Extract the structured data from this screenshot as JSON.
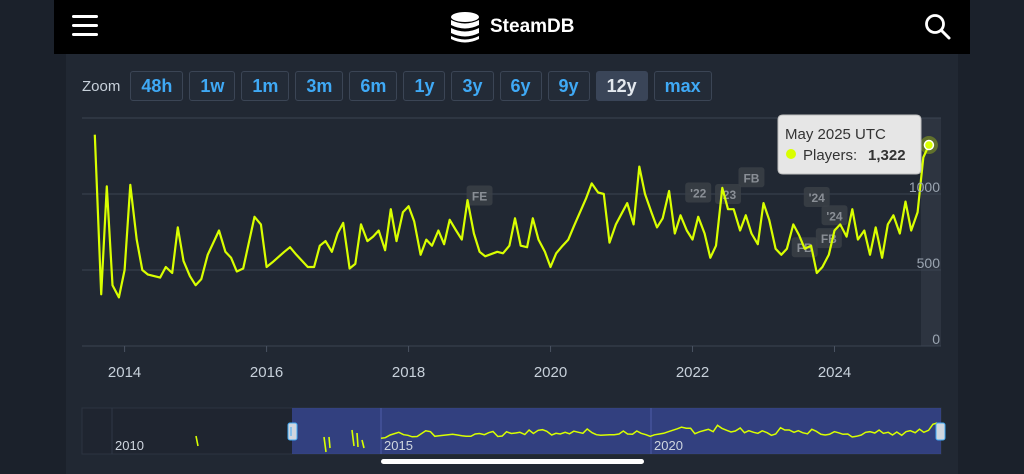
{
  "header": {
    "app_title": "SteamDB",
    "menu_icon": "hamburger-icon",
    "search_icon": "search-icon"
  },
  "zoom": {
    "label": "Zoom",
    "options": [
      "48h",
      "1w",
      "1m",
      "3m",
      "6m",
      "1y",
      "3y",
      "6y",
      "9y",
      "12y",
      "max"
    ],
    "selected": "12y"
  },
  "tooltip": {
    "date": "May 2025 UTC",
    "series_label": "Players:",
    "value_text": "1,322"
  },
  "navigator": {
    "labels": [
      "2010",
      "2015",
      "2020"
    ]
  },
  "colors": {
    "line": "#d9ff00",
    "accent": "#3fa9f5",
    "background": "#212833"
  },
  "chart_data": {
    "type": "line",
    "ylim": [
      0,
      1500
    ],
    "xlim": [
      2013.4,
      2025.5
    ],
    "yticks": [
      0,
      500,
      1000
    ],
    "ytick_labels": [
      "0",
      "500",
      "1000"
    ],
    "xticks": [
      2014,
      2016,
      2018,
      2020,
      2022,
      2024
    ],
    "xtick_labels": [
      "2014",
      "2016",
      "2018",
      "2020",
      "2022",
      "2024"
    ],
    "grid": true,
    "series": [
      {
        "points": [
          [
            2013.58,
            1390
          ],
          [
            2013.67,
            340
          ],
          [
            2013.75,
            1050
          ],
          [
            2013.83,
            400
          ],
          [
            2013.92,
            320
          ],
          [
            2014.0,
            500
          ],
          [
            2014.08,
            1060
          ],
          [
            2014.17,
            700
          ],
          [
            2014.25,
            500
          ],
          [
            2014.33,
            470
          ],
          [
            2014.5,
            450
          ],
          [
            2014.58,
            520
          ],
          [
            2014.67,
            480
          ],
          [
            2014.75,
            780
          ],
          [
            2014.83,
            560
          ],
          [
            2014.92,
            460
          ],
          [
            2015.0,
            400
          ],
          [
            2015.08,
            440
          ],
          [
            2015.17,
            600
          ],
          [
            2015.33,
            760
          ],
          [
            2015.42,
            620
          ],
          [
            2015.5,
            580
          ],
          [
            2015.58,
            490
          ],
          [
            2015.67,
            510
          ],
          [
            2015.83,
            850
          ],
          [
            2015.92,
            800
          ],
          [
            2016.0,
            520
          ],
          [
            2016.08,
            550
          ],
          [
            2016.25,
            620
          ],
          [
            2016.33,
            650
          ],
          [
            2016.42,
            600
          ],
          [
            2016.5,
            560
          ],
          [
            2016.58,
            520
          ],
          [
            2016.67,
            520
          ],
          [
            2016.75,
            660
          ],
          [
            2016.83,
            690
          ],
          [
            2016.92,
            620
          ],
          [
            2017.0,
            740
          ],
          [
            2017.08,
            810
          ],
          [
            2017.17,
            510
          ],
          [
            2017.25,
            540
          ],
          [
            2017.33,
            800
          ],
          [
            2017.42,
            690
          ],
          [
            2017.5,
            720
          ],
          [
            2017.58,
            760
          ],
          [
            2017.67,
            630
          ],
          [
            2017.75,
            900
          ],
          [
            2017.83,
            690
          ],
          [
            2017.92,
            880
          ],
          [
            2018.0,
            920
          ],
          [
            2018.08,
            820
          ],
          [
            2018.17,
            600
          ],
          [
            2018.25,
            700
          ],
          [
            2018.33,
            660
          ],
          [
            2018.42,
            760
          ],
          [
            2018.5,
            670
          ],
          [
            2018.58,
            830
          ],
          [
            2018.67,
            760
          ],
          [
            2018.75,
            700
          ],
          [
            2018.83,
            960
          ],
          [
            2018.92,
            740
          ],
          [
            2019.0,
            620
          ],
          [
            2019.08,
            590
          ],
          [
            2019.25,
            620
          ],
          [
            2019.33,
            610
          ],
          [
            2019.42,
            660
          ],
          [
            2019.5,
            840
          ],
          [
            2019.58,
            660
          ],
          [
            2019.67,
            650
          ],
          [
            2019.75,
            840
          ],
          [
            2019.83,
            700
          ],
          [
            2019.92,
            620
          ],
          [
            2020.0,
            520
          ],
          [
            2020.08,
            610
          ],
          [
            2020.17,
            660
          ],
          [
            2020.25,
            700
          ],
          [
            2020.33,
            790
          ],
          [
            2020.5,
            970
          ],
          [
            2020.58,
            1070
          ],
          [
            2020.67,
            1010
          ],
          [
            2020.75,
            1000
          ],
          [
            2020.83,
            680
          ],
          [
            2020.92,
            800
          ],
          [
            2021.0,
            870
          ],
          [
            2021.08,
            940
          ],
          [
            2021.17,
            800
          ],
          [
            2021.25,
            1180
          ],
          [
            2021.33,
            1000
          ],
          [
            2021.42,
            880
          ],
          [
            2021.5,
            780
          ],
          [
            2021.58,
            840
          ],
          [
            2021.67,
            1020
          ],
          [
            2021.75,
            740
          ],
          [
            2021.83,
            860
          ],
          [
            2021.92,
            760
          ],
          [
            2022.0,
            700
          ],
          [
            2022.08,
            850
          ],
          [
            2022.17,
            740
          ],
          [
            2022.25,
            580
          ],
          [
            2022.33,
            660
          ],
          [
            2022.42,
            1040
          ],
          [
            2022.5,
            900
          ],
          [
            2022.58,
            900
          ],
          [
            2022.67,
            760
          ],
          [
            2022.75,
            860
          ],
          [
            2022.83,
            740
          ],
          [
            2022.92,
            670
          ],
          [
            2023.0,
            940
          ],
          [
            2023.08,
            830
          ],
          [
            2023.17,
            640
          ],
          [
            2023.25,
            600
          ],
          [
            2023.33,
            640
          ],
          [
            2023.42,
            800
          ],
          [
            2023.5,
            730
          ],
          [
            2023.58,
            640
          ],
          [
            2023.67,
            660
          ],
          [
            2023.75,
            480
          ],
          [
            2023.83,
            520
          ],
          [
            2023.92,
            600
          ],
          [
            2024.0,
            760
          ],
          [
            2024.08,
            800
          ],
          [
            2024.17,
            720
          ],
          [
            2024.25,
            900
          ],
          [
            2024.33,
            700
          ],
          [
            2024.42,
            760
          ],
          [
            2024.5,
            600
          ],
          [
            2024.58,
            780
          ],
          [
            2024.67,
            580
          ],
          [
            2024.75,
            800
          ],
          [
            2024.83,
            860
          ],
          [
            2024.92,
            740
          ],
          [
            2025.0,
            950
          ],
          [
            2025.08,
            760
          ],
          [
            2025.17,
            880
          ],
          [
            2025.25,
            1240
          ],
          [
            2025.33,
            1322
          ]
        ]
      }
    ],
    "highlight": {
      "x": 2025.33,
      "y": 1322
    },
    "annotations": [
      {
        "text": "FE",
        "x": 2019.0,
        "y": 990
      },
      {
        "text": "'22",
        "x": 2022.08,
        "y": 1010
      },
      {
        "text": "'23",
        "x": 2022.5,
        "y": 1000
      },
      {
        "text": "FB",
        "x": 2022.83,
        "y": 1110
      },
      {
        "text": "'24",
        "x": 2023.75,
        "y": 980
      },
      {
        "text": "'24",
        "x": 2024.0,
        "y": 860
      },
      {
        "text": "FB",
        "x": 2023.58,
        "y": 650
      },
      {
        "text": "FB",
        "x": 2023.92,
        "y": 710
      }
    ]
  }
}
